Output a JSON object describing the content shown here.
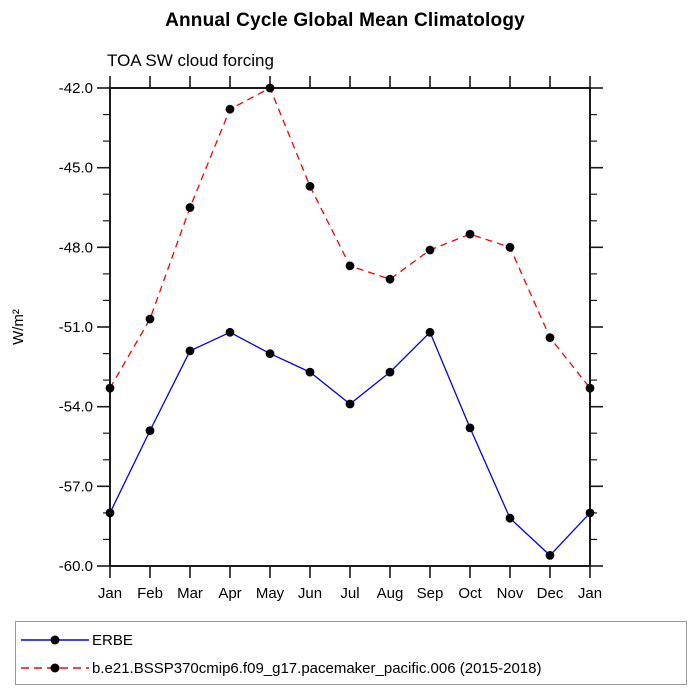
{
  "chart_data": {
    "type": "line",
    "title": "Annual Cycle Global Mean Climatology",
    "subtitle": "TOA SW cloud forcing",
    "xlabel": "",
    "ylabel": "W/m²",
    "ylim": [
      -60,
      -42
    ],
    "y_major_ticks": [
      -42,
      -45,
      -48,
      -51,
      -54,
      -57,
      -60
    ],
    "y_tick_labels": [
      "-42.0",
      "-45.0",
      "-48.0",
      "-51.0",
      "-54.0",
      "-57.0",
      "-60.0"
    ],
    "y_minor_step": 1,
    "grid": false,
    "legend_position": "bottom",
    "x_categories": [
      "Jan",
      "Feb",
      "Mar",
      "Apr",
      "May",
      "Jun",
      "Jul",
      "Aug",
      "Sep",
      "Oct",
      "Nov",
      "Dec",
      "Jan"
    ],
    "series": [
      {
        "name": "ERBE",
        "color": "#0000ff",
        "line_style": "solid",
        "marker": "circle",
        "marker_color": "#000000",
        "values": [
          -58.0,
          -54.9,
          -51.9,
          -51.2,
          -52.0,
          -52.7,
          -53.9,
          -52.7,
          -51.2,
          -54.8,
          -58.2,
          -59.6,
          -58.0
        ]
      },
      {
        "name": "b.e21.BSSP370cmip6.f09_g17.pacemaker_pacific.006 (2015-2018)",
        "color": "#ff0000",
        "line_style": "dashed",
        "marker": "circle",
        "marker_color": "#000000",
        "values": [
          -53.3,
          -50.7,
          -46.5,
          -42.8,
          -42.0,
          -45.7,
          -48.7,
          -49.2,
          -48.1,
          -47.5,
          -48.0,
          -51.4,
          -53.3
        ]
      }
    ],
    "axis_color": "#1a1a1a"
  }
}
